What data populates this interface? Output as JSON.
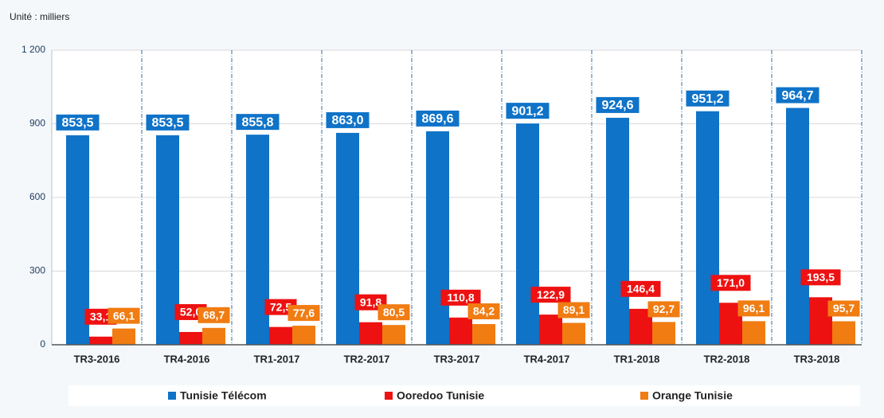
{
  "chart_data": {
    "type": "bar",
    "annotation": "Unité : milliers",
    "categories": [
      "TR3-2016",
      "TR4-2016",
      "TR1-2017",
      "TR2-2017",
      "TR3-2017",
      "TR4-2017",
      "TR1-2018",
      "TR2-2018",
      "TR3-2018"
    ],
    "series": [
      {
        "name": "Tunisie Télécom",
        "color": "#0f73c8",
        "values": [
          853.5,
          853.5,
          855.8,
          863.0,
          869.6,
          901.2,
          924.6,
          951.2,
          964.7
        ],
        "value_labels": [
          "853,5",
          "853,5",
          "855,8",
          "863,0",
          "869,6",
          "901,2",
          "924,6",
          "951,2",
          "964,7"
        ]
      },
      {
        "name": "Ooredoo Tunisie",
        "color": "#ee1111",
        "values": [
          33.1,
          52.0,
          72.5,
          91.8,
          110.8,
          122.9,
          146.4,
          171.0,
          193.5
        ],
        "value_labels": [
          "33,1",
          "52,0",
          "72,5",
          "91,8",
          "110,8",
          "122,9",
          "146,4",
          "171,0",
          "193,5"
        ]
      },
      {
        "name": "Orange Tunisie",
        "color": "#f07c12",
        "values": [
          66.1,
          68.7,
          77.6,
          80.5,
          84.2,
          89.1,
          92.7,
          96.1,
          95.7
        ],
        "value_labels": [
          "66,1",
          "68,7",
          "77,6",
          "80,5",
          "84,2",
          "89,1",
          "92,7",
          "96,1",
          "95,7"
        ]
      }
    ],
    "ylim": [
      0,
      1200
    ],
    "yticks": [
      0,
      300,
      600,
      900,
      {
        "value": 1200,
        "label": "1 200"
      }
    ],
    "grid": true,
    "legend": "bottom"
  }
}
